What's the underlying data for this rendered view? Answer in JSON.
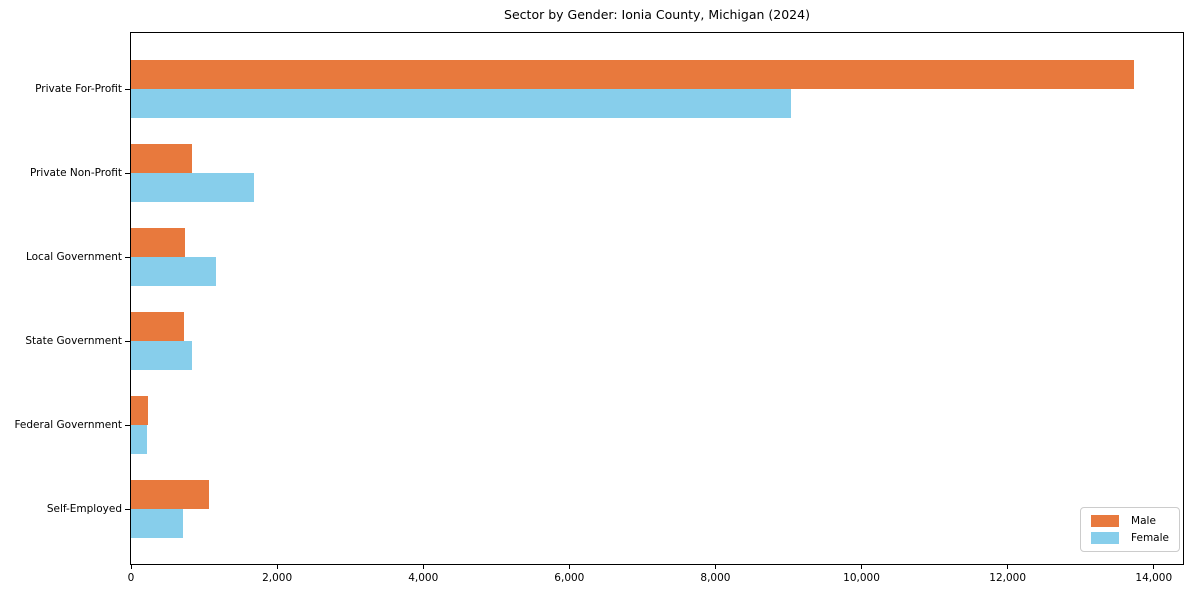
{
  "chart_data": {
    "type": "bar",
    "orientation": "horizontal",
    "title": "Sector by Gender: Ionia County, Michigan (2024)",
    "categories": [
      "Private For-Profit",
      "Private Non-Profit",
      "Local Government",
      "State Government",
      "Federal Government",
      "Self-Employed"
    ],
    "series": [
      {
        "name": "Male",
        "color": "#e8793d",
        "values": [
          13730,
          830,
          740,
          720,
          230,
          1065
        ]
      },
      {
        "name": "Female",
        "color": "#87ceeb",
        "values": [
          9040,
          1690,
          1170,
          830,
          215,
          710
        ]
      }
    ],
    "xlabel": "",
    "ylabel": "",
    "xlim": [
      0,
      14400
    ],
    "xticks": [
      0,
      2000,
      4000,
      6000,
      8000,
      10000,
      12000,
      14000
    ],
    "xtick_labels": [
      "0",
      "2,000",
      "4,000",
      "6,000",
      "8,000",
      "10,000",
      "12,000",
      "14,000"
    ],
    "grid": false,
    "legend": {
      "position": "lower right",
      "entries": [
        "Male",
        "Female"
      ]
    }
  }
}
